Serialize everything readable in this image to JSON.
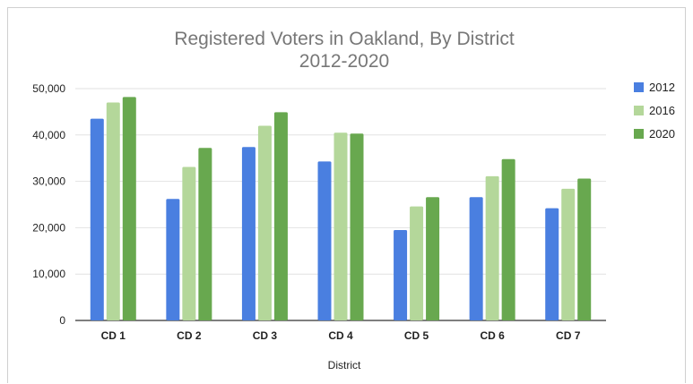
{
  "chart_data": {
    "type": "bar",
    "title_lines": [
      "Registered Voters in Oakland, By District",
      "2012-2020"
    ],
    "xlabel": "District",
    "ylabel": "",
    "categories": [
      "CD 1",
      "CD 2",
      "CD 3",
      "CD 4",
      "CD 5",
      "CD 6",
      "CD 7"
    ],
    "series": [
      {
        "name": "2012",
        "color": "#4a7fe0",
        "values": [
          43500,
          26200,
          37400,
          34300,
          19500,
          26600,
          24200
        ]
      },
      {
        "name": "2016",
        "color": "#b4d79a",
        "values": [
          47000,
          33100,
          42000,
          40500,
          24600,
          31100,
          28400
        ]
      },
      {
        "name": "2020",
        "color": "#68a84f",
        "values": [
          48200,
          37200,
          44900,
          40300,
          26600,
          34800,
          30600
        ]
      }
    ],
    "ylim": [
      0,
      50000
    ],
    "yticks": [
      0,
      10000,
      20000,
      30000,
      40000,
      50000
    ],
    "ytick_labels": [
      "0",
      "10,000",
      "20,000",
      "30,000",
      "40,000",
      "50,000"
    ],
    "grid": true,
    "legend_position": "right"
  }
}
